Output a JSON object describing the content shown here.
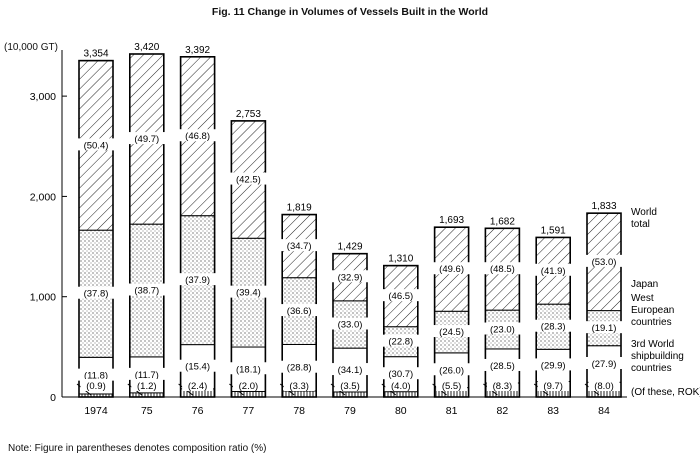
{
  "chart_data": {
    "type": "bar",
    "stacked": true,
    "title": "Fig. 11  Change in Volumes of Vessels Built in the World",
    "y_unit": "(10,000 GT)",
    "ylim": [
      0,
      3400
    ],
    "yticks": [
      0,
      1000,
      2000,
      3000
    ],
    "ytick_labels": [
      "0",
      "1,000",
      "2,000",
      "3,000"
    ],
    "categories": [
      "1974",
      "75",
      "76",
      "77",
      "78",
      "79",
      "80",
      "81",
      "82",
      "83",
      "84"
    ],
    "totals": [
      3354,
      3420,
      3392,
      2753,
      1819,
      1429,
      1310,
      1693,
      1682,
      1591,
      1833
    ],
    "total_labels": [
      "3,354",
      "3,420",
      "3,392",
      "2,753",
      "1,819",
      "1,429",
      "1,310",
      "1,693",
      "1,682",
      "1,591",
      "1,833"
    ],
    "series": [
      {
        "name": "Japan",
        "pattern": "diagonal-hatch",
        "share_labels": [
          "(50.4)",
          "(49.7)",
          "(46.8)",
          "(42.5)",
          "(34.7)",
          "(32.9)",
          "(46.5)",
          "(49.6)",
          "(48.5)",
          "(41.9)",
          "(53.0)"
        ]
      },
      {
        "name": "West European countries",
        "pattern": "dots",
        "share_labels": [
          "(37.8)",
          "(38.7)",
          "(37.9)",
          "(39.4)",
          "(36.6)",
          "(33.0)",
          "(22.8)",
          "(24.5)",
          "(23.0)",
          "(28.3)",
          "(19.1)"
        ]
      },
      {
        "name": "3rd World shipbuilding countries",
        "pattern": "blank",
        "share_labels": [
          "(11.8)",
          "(11.7)",
          "(15.4)",
          "(18.1)",
          "(28.8)",
          "(34.1)",
          "(30.7)",
          "(26.0)",
          "(28.5)",
          "(29.9)",
          "(27.9)"
        ]
      },
      {
        "name": "(Of these, ROK)",
        "pattern": "vertical-lines",
        "share_labels": [
          "(0.9)",
          "(1.2)",
          "(2.4)",
          "(2.0)",
          "(3.3)",
          "(3.5)",
          "(4.0)",
          "(5.5)",
          "(8.3)",
          "(9.7)",
          "(8.0)"
        ]
      }
    ],
    "legend": {
      "world_total": [
        "World",
        "total"
      ],
      "japan": [
        "Japan"
      ],
      "west_european": [
        "West",
        "European",
        "countries"
      ],
      "third_world": [
        "3rd World",
        "shipbuilding",
        "countries"
      ],
      "rok": [
        "(Of these, ROK)"
      ]
    },
    "legend_placement": "right"
  },
  "note": "Note: Figure in parentheses denotes composition ratio (%)"
}
